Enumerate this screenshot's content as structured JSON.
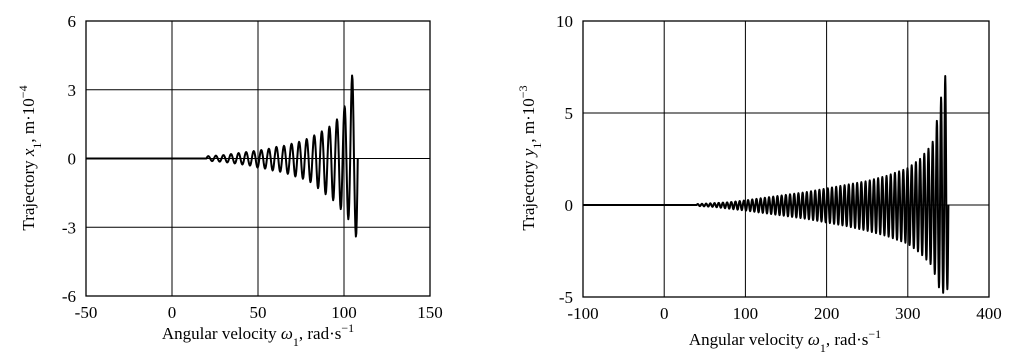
{
  "chart_data": [
    {
      "type": "line",
      "xlabel": "Angular velocity",
      "xsym": "ω",
      "xsub": "1",
      "xunit": ", rad·s",
      "xexp": "−1",
      "ylabel": "Trajectory",
      "ysym": "x",
      "ysub": "1",
      "yunit": ", m·10",
      "yexp": "−4",
      "xlim": [
        -50,
        150
      ],
      "ylim": [
        -6,
        6
      ],
      "xticks": [
        "-50",
        "0",
        "50",
        "100",
        "150"
      ],
      "yticks": [
        "6",
        "3",
        "0",
        "-3",
        "-6"
      ],
      "grid": true,
      "series": [
        {
          "x": [
            -50,
            20,
            25,
            30,
            35,
            40,
            45,
            50,
            55,
            60,
            65,
            70,
            75,
            80,
            85,
            90,
            95,
            100,
            103,
            106,
            108
          ],
          "y_upper": [
            0,
            0.1,
            0.12,
            0.15,
            0.2,
            0.25,
            0.3,
            0.35,
            0.4,
            0.5,
            0.55,
            0.65,
            0.75,
            0.9,
            1.1,
            1.3,
            1.6,
            2.2,
            3.0,
            4.1,
            3.5
          ],
          "y_lower": [
            0,
            -0.1,
            -0.12,
            -0.15,
            -0.2,
            -0.25,
            -0.3,
            -0.4,
            -0.45,
            -0.55,
            -0.6,
            -0.75,
            -0.85,
            -1.0,
            -1.3,
            -1.6,
            -1.9,
            -2.4,
            -2.7,
            -3.0,
            -3.9
          ]
        }
      ]
    },
    {
      "type": "line",
      "xlabel": "Angular velocity",
      "xsym": "ω",
      "xsub": "1",
      "xunit": ", rad·s",
      "xexp": "−1",
      "ylabel": "Trajectory",
      "ysym": "y",
      "ysub": "1",
      "yunit": ", m·10",
      "yexp": "−3",
      "xlim": [
        -100,
        400
      ],
      "ylim": [
        -5,
        10
      ],
      "xticks": [
        "-100",
        "0",
        "100",
        "200",
        "300",
        "400"
      ],
      "yticks": [
        "10",
        "5",
        "0",
        "-5"
      ],
      "grid": true,
      "series": [
        {
          "x": [
            -100,
            40,
            60,
            80,
            100,
            125,
            150,
            175,
            200,
            225,
            250,
            275,
            300,
            315,
            330,
            340,
            345,
            350
          ],
          "y_upper": [
            0,
            0.05,
            0.1,
            0.15,
            0.25,
            0.4,
            0.55,
            0.7,
            0.9,
            1.1,
            1.3,
            1.6,
            2.0,
            2.5,
            3.3,
            5.5,
            7.3,
            6.0
          ],
          "y_lower": [
            0,
            -0.05,
            -0.1,
            -0.2,
            -0.3,
            -0.45,
            -0.6,
            -0.75,
            -0.95,
            -1.15,
            -1.4,
            -1.7,
            -2.1,
            -2.6,
            -3.3,
            -4.7,
            -4.8,
            -4.5
          ]
        }
      ]
    }
  ]
}
